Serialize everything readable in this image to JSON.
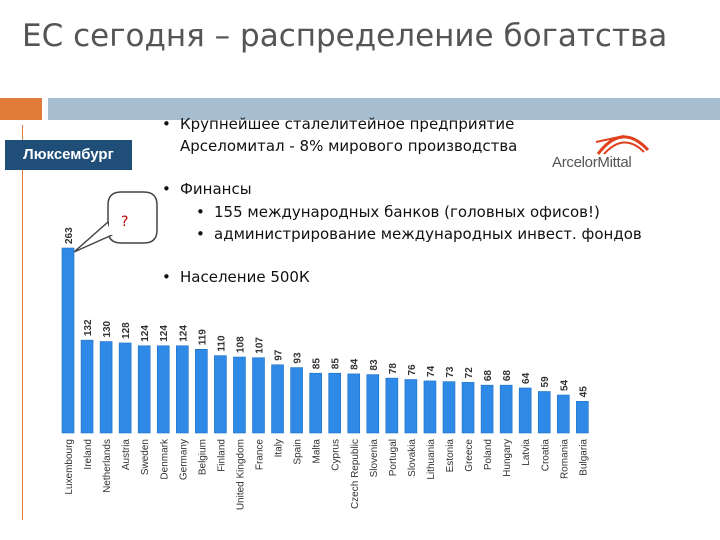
{
  "slide": {
    "title": "ЕС сегодня – распределение богатства",
    "country_label": "Люксембург",
    "callout_text": "?",
    "bullets": {
      "b1_line1": "Крупнейшее сталелитейное предприятие",
      "b1_line2": "Арселомитал - 8% мирового производства",
      "b2": "Финансы",
      "b2_sub1": "155 международных банков (головных офисов!)",
      "b2_sub2": "администрирование международных инвест. фондов",
      "b3": "Население 500К"
    },
    "logo_text": "ArcelorMittal"
  },
  "colors": {
    "bar": "#2e8ae6",
    "bar_outline": "#1f6fc4",
    "header_orange": "#e07b39",
    "header_blue": "#a7bed0",
    "label_bg": "#1f4e79",
    "logo_red": "#e0401c"
  },
  "chart_data": {
    "type": "bar",
    "categories": [
      "Luxembourg",
      "Ireland",
      "Netherlands",
      "Austria",
      "Sweden",
      "Denmark",
      "Germany",
      "Belgium",
      "Finland",
      "United Kingdom",
      "France",
      "Italy",
      "Spain",
      "Malta",
      "Cyprus",
      "Czech Republic",
      "Slovenia",
      "Portugal",
      "Slovakia",
      "Lithuania",
      "Estonia",
      "Greece",
      "Poland",
      "Hungary",
      "Latvia",
      "Croatia",
      "Romania",
      "Bulgaria"
    ],
    "values": [
      263,
      132,
      130,
      128,
      124,
      124,
      124,
      119,
      110,
      108,
      107,
      97,
      93,
      85,
      85,
      84,
      83,
      78,
      76,
      74,
      73,
      72,
      68,
      68,
      64,
      59,
      54,
      45
    ],
    "title": "",
    "xlabel": "",
    "ylabel": "",
    "ylim": [
      0,
      263
    ],
    "grid": false,
    "data_labels": true
  }
}
